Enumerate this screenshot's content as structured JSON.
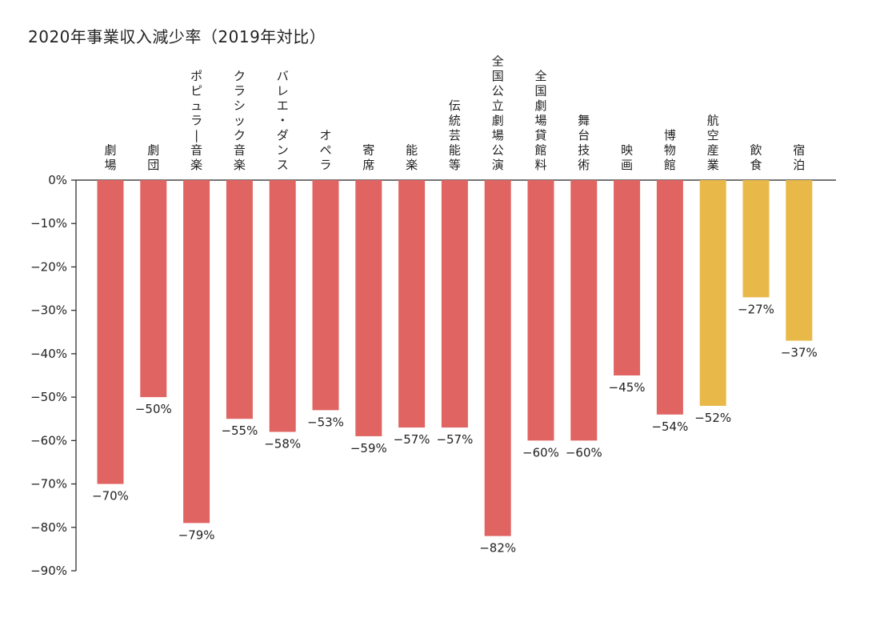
{
  "chart_data": {
    "type": "bar",
    "title": "2020年事業収入減少率（2019年対比）",
    "xlabel": "",
    "ylabel": "",
    "ylim": [
      -90,
      0
    ],
    "yticks": [
      "0%",
      "−10%",
      "−20%",
      "−30%",
      "−40%",
      "−50%",
      "−60%",
      "−70%",
      "−80%",
      "−90%"
    ],
    "categories": [
      "劇場",
      "劇団",
      "ポピュラー音楽",
      "クラシック音楽",
      "バレエ・ダンス",
      "オペラ",
      "寄席",
      "能楽",
      "伝統芸能等",
      "全国公立劇場公演",
      "全国劇場貸館料",
      "舞台技術",
      "映画",
      "博物館",
      "航空産業",
      "飲食",
      "宿泊"
    ],
    "values": [
      -70,
      -50,
      -79,
      -55,
      -58,
      -53,
      -59,
      -57,
      -57,
      -82,
      -60,
      -60,
      -45,
      -54,
      -52,
      -27,
      -37
    ],
    "labels": [
      "−70%",
      "−50%",
      "−79%",
      "−55%",
      "−58%",
      "−53%",
      "−59%",
      "−57%",
      "−57%",
      "−82%",
      "−60%",
      "−60%",
      "−45%",
      "−54%",
      "−52%",
      "−27%",
      "−37%"
    ],
    "bar_groups": [
      "culture",
      "culture",
      "culture",
      "culture",
      "culture",
      "culture",
      "culture",
      "culture",
      "culture",
      "culture",
      "culture",
      "culture",
      "culture",
      "culture",
      "other",
      "other",
      "other"
    ],
    "colors": {
      "culture": "#e06462",
      "other": "#e8b948"
    },
    "grid": false,
    "legend": "none"
  }
}
